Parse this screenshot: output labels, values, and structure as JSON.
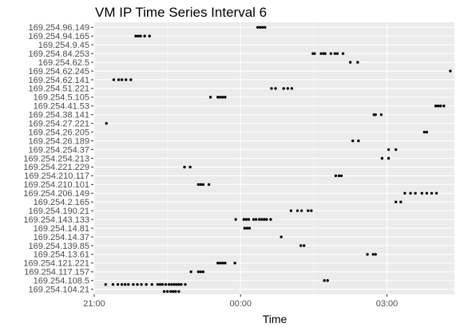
{
  "chart_data": {
    "type": "scatter",
    "title": "VM IP Time Series Interval 6",
    "xlabel": "Time",
    "ylabel": "",
    "x_tick_labels": [
      "21:00",
      "00:00",
      "03:00"
    ],
    "x_ticks_minutes": [
      1260,
      1440,
      1620
    ],
    "xlim_minutes": [
      1259,
      1703
    ],
    "grid": true,
    "legend": "none",
    "background": "#ebebeb",
    "point_color": "#000000",
    "categories": [
      "169.254.96.149",
      "169.254.94.165",
      "169.254.9.45",
      "169.254.84.253",
      "169.254.62.5",
      "169.254.62.245",
      "169.254.62.141",
      "169.254.51.221",
      "169.254.5.105",
      "169.254.41.53",
      "169.254.38.141",
      "169.254.27.221",
      "169.254.26.205",
      "169.254.26.189",
      "169.254.254.37",
      "169.254.254.213",
      "169.254.221.229",
      "169.254.210.117",
      "169.254.210.101",
      "169.254.206.149",
      "169.254.2.165",
      "169.254.190.21",
      "169.254.143.133",
      "169.254.14.81",
      "169.254.14.37",
      "169.254.139.85",
      "169.254.13.61",
      "169.254.121.221",
      "169.254.117.157",
      "169.254.108.5",
      "169.254.104.21"
    ],
    "series": [
      {
        "ip": "169.254.96.149",
        "minutes": [
          1461,
          1464,
          1467,
          1470
        ]
      },
      {
        "ip": "169.254.94.165",
        "minutes": [
          1311,
          1314,
          1317,
          1322,
          1328
        ]
      },
      {
        "ip": "169.254.9.45",
        "minutes": []
      },
      {
        "ip": "169.254.84.253",
        "minutes": [
          1529,
          1531,
          1539,
          1542,
          1544,
          1551,
          1556,
          1559,
          1566
        ]
      },
      {
        "ip": "169.254.62.5",
        "minutes": [
          1575,
          1584
        ]
      },
      {
        "ip": "169.254.62.245",
        "minutes": [
          1698
        ]
      },
      {
        "ip": "169.254.62.141",
        "minutes": [
          1284,
          1290,
          1294,
          1299,
          1305
        ]
      },
      {
        "ip": "169.254.51.221",
        "minutes": [
          1478,
          1483,
          1493,
          1498,
          1503
        ]
      },
      {
        "ip": "169.254.5.105",
        "minutes": [
          1403,
          1412,
          1415,
          1418,
          1421
        ]
      },
      {
        "ip": "169.254.41.53",
        "minutes": [
          1680,
          1683,
          1686,
          1690
        ]
      },
      {
        "ip": "169.254.38.141",
        "minutes": [
          1604,
          1606,
          1613
        ]
      },
      {
        "ip": "169.254.27.221",
        "minutes": [
          1275
        ]
      },
      {
        "ip": "169.254.26.205",
        "minutes": [
          1666,
          1669
        ]
      },
      {
        "ip": "169.254.26.189",
        "minutes": [
          1578,
          1585
        ]
      },
      {
        "ip": "169.254.254.37",
        "minutes": [
          1622,
          1631
        ]
      },
      {
        "ip": "169.254.254.213",
        "minutes": [
          1614,
          1622
        ]
      },
      {
        "ip": "169.254.221.229",
        "minutes": [
          1371,
          1378
        ]
      },
      {
        "ip": "169.254.210.117",
        "minutes": [
          1557,
          1561,
          1564
        ]
      },
      {
        "ip": "169.254.210.101",
        "minutes": [
          1388,
          1391,
          1394,
          1401
        ]
      },
      {
        "ip": "169.254.206.149",
        "minutes": [
          1642,
          1649,
          1655,
          1663,
          1669,
          1675,
          1681
        ]
      },
      {
        "ip": "169.254.2.165",
        "minutes": [
          1631,
          1637
        ]
      },
      {
        "ip": "169.254.190.21",
        "minutes": [
          1502,
          1510,
          1515,
          1523,
          1527
        ]
      },
      {
        "ip": "169.254.143.133",
        "minutes": [
          1434,
          1444,
          1447,
          1450,
          1456,
          1459,
          1463,
          1466,
          1469,
          1472,
          1477
        ]
      },
      {
        "ip": "169.254.14.81",
        "minutes": [
          1445,
          1448,
          1451
        ]
      },
      {
        "ip": "169.254.14.37",
        "minutes": [
          1490
        ]
      },
      {
        "ip": "169.254.139.85",
        "minutes": [
          1514,
          1518
        ]
      },
      {
        "ip": "169.254.13.61",
        "minutes": [
          1596,
          1603,
          1606
        ]
      },
      {
        "ip": "169.254.121.221",
        "minutes": [
          1412,
          1415,
          1418,
          1421,
          1433
        ]
      },
      {
        "ip": "169.254.117.157",
        "minutes": [
          1379,
          1388,
          1391,
          1394
        ]
      },
      {
        "ip": "169.254.108.5",
        "minutes": [
          1543,
          1547
        ]
      },
      {
        "ip": "169.254.104.21",
        "minutes": [
          1274,
          1283,
          1289,
          1294,
          1298,
          1302,
          1308,
          1313,
          1318,
          1324,
          1331,
          1338,
          1341,
          1344,
          1348,
          1352,
          1355,
          1358,
          1361,
          1364,
          1367,
          1372
        ]
      },
      {
        "ip": "169.254.104.21",
        "minutes": [
          1346,
          1350,
          1354,
          1357,
          1360,
          1364
        ]
      }
    ]
  }
}
